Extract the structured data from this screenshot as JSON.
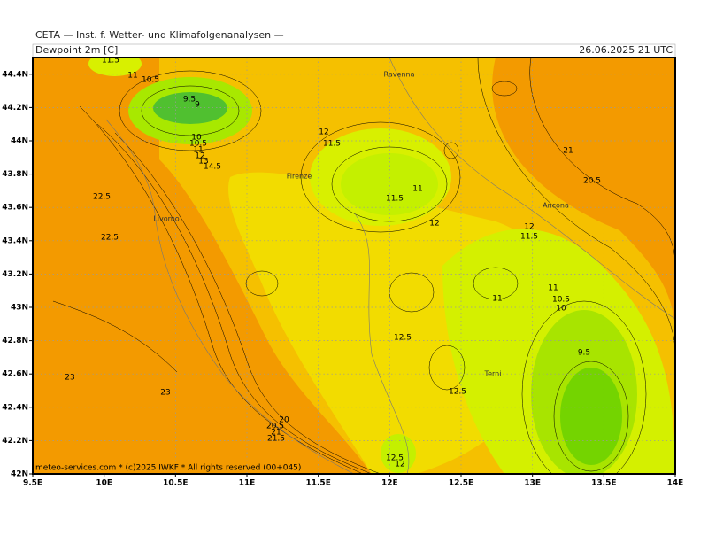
{
  "header": {
    "institute": "CETA — Inst. f. Wetter- und Klimafolgenanalysen —",
    "field": "Dewpoint 2m [C]",
    "valid_time": "26.06.2025 21 UTC"
  },
  "map": {
    "lon_range": [
      9.5,
      14
    ],
    "lat_range": [
      42,
      44.5
    ],
    "lon_ticks": [
      {
        "value": 9.5,
        "label": "9.5E"
      },
      {
        "value": 10,
        "label": "10E"
      },
      {
        "value": 10.5,
        "label": "10.5E"
      },
      {
        "value": 11,
        "label": "11E"
      },
      {
        "value": 11.5,
        "label": "11.5E"
      },
      {
        "value": 12,
        "label": "12E"
      },
      {
        "value": 12.5,
        "label": "12.5E"
      },
      {
        "value": 13,
        "label": "13E"
      },
      {
        "value": 13.5,
        "label": "13.5E"
      },
      {
        "value": 14,
        "label": "14E"
      }
    ],
    "lat_ticks": [
      {
        "value": 42,
        "label": "42N"
      },
      {
        "value": 42.2,
        "label": "42.2N"
      },
      {
        "value": 42.4,
        "label": "42.4N"
      },
      {
        "value": 42.6,
        "label": "42.6N"
      },
      {
        "value": 42.8,
        "label": "42.8N"
      },
      {
        "value": 43,
        "label": "43N"
      },
      {
        "value": 43.2,
        "label": "43.2N"
      },
      {
        "value": 43.4,
        "label": "43.4N"
      },
      {
        "value": 43.6,
        "label": "43.6N"
      },
      {
        "value": 43.8,
        "label": "43.8N"
      },
      {
        "value": 44,
        "label": "44N"
      },
      {
        "value": 44.2,
        "label": "44.2N"
      },
      {
        "value": 44.4,
        "label": "44.4N"
      }
    ],
    "cities": [
      "Ravenna",
      "Firenze",
      "Livorno",
      "Ancona",
      "Terni"
    ],
    "contour_labels": [
      "11.5",
      "11",
      "10.5",
      "9.5",
      "9",
      "10",
      "10.5",
      "11",
      "12",
      "13",
      "14.5",
      "22.5",
      "22.5",
      "12",
      "11.5",
      "11",
      "11.5",
      "12",
      "21",
      "20.5",
      "12",
      "11.5",
      "11",
      "11",
      "10.5",
      "10",
      "9.5",
      "12.5",
      "12.5",
      "23",
      "23",
      "20",
      "20.5",
      "21",
      "21.5",
      "12.5",
      "12"
    ]
  },
  "footer": "meteo-services.com * (c)2025 IWKF * All rights reserved (00+045)"
}
